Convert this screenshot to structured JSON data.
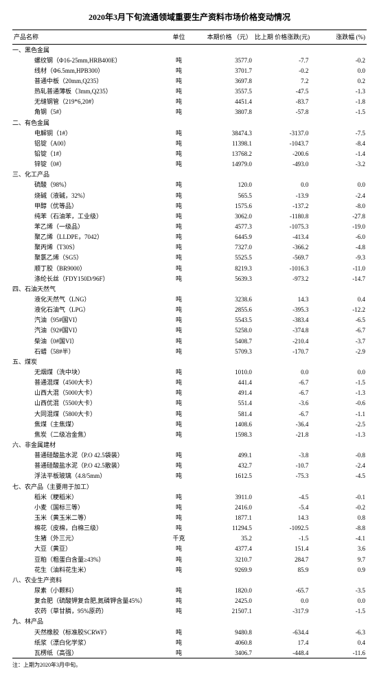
{
  "title": "2020年3月下旬流通领域重要生产资料市场价格变动情况",
  "columns": {
    "name": "产品名称",
    "unit": "单位",
    "price": "本期价格\n（元）",
    "diff": "比上期\n价格涨跌(元)",
    "pct": "涨跌幅 (%)"
  },
  "note": "注：上期为2020年3月中旬。",
  "sections": [
    {
      "cat": "一、黑色金属",
      "rows": [
        {
          "name": "螺纹钢（Φ16-25mm,HRB400E）",
          "unit": "吨",
          "price": "3577.0",
          "diff": "-7.7",
          "pct": "-0.2"
        },
        {
          "name": "线材（Φ6.5mm,HPB300）",
          "unit": "吨",
          "price": "3701.7",
          "diff": "-0.2",
          "pct": "0.0"
        },
        {
          "name": "普通中板（20mm,Q235）",
          "unit": "吨",
          "price": "3697.8",
          "diff": "7.2",
          "pct": "0.2"
        },
        {
          "name": "热轧普通薄板（3mm,Q235）",
          "unit": "吨",
          "price": "3557.5",
          "diff": "-47.5",
          "pct": "-1.3"
        },
        {
          "name": "无缝钢管（219*6,20#）",
          "unit": "吨",
          "price": "4451.4",
          "diff": "-83.7",
          "pct": "-1.8"
        },
        {
          "name": "角钢（5#）",
          "unit": "吨",
          "price": "3807.8",
          "diff": "-57.8",
          "pct": "-1.5"
        }
      ]
    },
    {
      "cat": "二、有色金属",
      "rows": [
        {
          "name": "电解铜（1#）",
          "unit": "吨",
          "price": "38474.3",
          "diff": "-3137.0",
          "pct": "-7.5"
        },
        {
          "name": "铝锭（A00）",
          "unit": "吨",
          "price": "11398.1",
          "diff": "-1043.7",
          "pct": "-8.4"
        },
        {
          "name": "铅锭（1#）",
          "unit": "吨",
          "price": "13768.2",
          "diff": "-200.6",
          "pct": "-1.4"
        },
        {
          "name": "锌锭（0#）",
          "unit": "吨",
          "price": "14979.0",
          "diff": "-493.0",
          "pct": "-3.2"
        }
      ]
    },
    {
      "cat": "三、化工产品",
      "rows": [
        {
          "name": "硫酸（98%）",
          "unit": "吨",
          "price": "120.0",
          "diff": "0.0",
          "pct": "0.0"
        },
        {
          "name": "烧碱（液碱，32%）",
          "unit": "吨",
          "price": "565.5",
          "diff": "-13.9",
          "pct": "-2.4"
        },
        {
          "name": "甲醇（优等品）",
          "unit": "吨",
          "price": "1575.6",
          "diff": "-137.2",
          "pct": "-8.0"
        },
        {
          "name": "纯苯（石油苯，工业级）",
          "unit": "吨",
          "price": "3062.0",
          "diff": "-1180.8",
          "pct": "-27.8"
        },
        {
          "name": "苯乙烯（一级品）",
          "unit": "吨",
          "price": "4577.3",
          "diff": "-1075.3",
          "pct": "-19.0"
        },
        {
          "name": "聚乙烯（LLDPE，7042）",
          "unit": "吨",
          "price": "6445.9",
          "diff": "-413.4",
          "pct": "-6.0"
        },
        {
          "name": "聚丙烯（T30S）",
          "unit": "吨",
          "price": "7327.0",
          "diff": "-366.2",
          "pct": "-4.8"
        },
        {
          "name": "聚氯乙烯（SG5）",
          "unit": "吨",
          "price": "5525.5",
          "diff": "-569.7",
          "pct": "-9.3"
        },
        {
          "name": "顺丁胶（BR9000）",
          "unit": "吨",
          "price": "8219.3",
          "diff": "-1016.3",
          "pct": "-11.0"
        },
        {
          "name": "涤纶长丝（FDY150D/96F）",
          "unit": "吨",
          "price": "5639.3",
          "diff": "-973.2",
          "pct": "-14.7"
        }
      ]
    },
    {
      "cat": "四、石油天然气",
      "rows": [
        {
          "name": "液化天然气（LNG）",
          "unit": "吨",
          "price": "3238.6",
          "diff": "14.3",
          "pct": "0.4"
        },
        {
          "name": "液化石油气（LPG）",
          "unit": "吨",
          "price": "2855.6",
          "diff": "-395.3",
          "pct": "-12.2"
        },
        {
          "name": "汽油（95#国VI）",
          "unit": "吨",
          "price": "5543.5",
          "diff": "-383.4",
          "pct": "-6.5"
        },
        {
          "name": "汽油（92#国VI）",
          "unit": "吨",
          "price": "5258.0",
          "diff": "-374.8",
          "pct": "-6.7"
        },
        {
          "name": "柴油（0#国VI）",
          "unit": "吨",
          "price": "5408.7",
          "diff": "-210.4",
          "pct": "-3.7"
        },
        {
          "name": "石蜡（58#半）",
          "unit": "吨",
          "price": "5709.3",
          "diff": "-170.7",
          "pct": "-2.9"
        }
      ]
    },
    {
      "cat": "五、煤炭",
      "rows": [
        {
          "name": "无烟煤（洗中块）",
          "unit": "吨",
          "price": "1010.0",
          "diff": "0.0",
          "pct": "0.0"
        },
        {
          "name": "普通混煤（4500大卡）",
          "unit": "吨",
          "price": "441.4",
          "diff": "-6.7",
          "pct": "-1.5"
        },
        {
          "name": "山西大混（5000大卡）",
          "unit": "吨",
          "price": "491.4",
          "diff": "-6.7",
          "pct": "-1.3"
        },
        {
          "name": "山西优混（5500大卡）",
          "unit": "吨",
          "price": "551.4",
          "diff": "-3.6",
          "pct": "-0.6"
        },
        {
          "name": "大同混煤（5800大卡）",
          "unit": "吨",
          "price": "581.4",
          "diff": "-6.7",
          "pct": "-1.1"
        },
        {
          "name": "焦煤（主焦煤）",
          "unit": "吨",
          "price": "1408.6",
          "diff": "-36.4",
          "pct": "-2.5"
        },
        {
          "name": "焦炭（二级冶金焦）",
          "unit": "吨",
          "price": "1598.3",
          "diff": "-21.8",
          "pct": "-1.3"
        }
      ]
    },
    {
      "cat": "六、非金属建材",
      "rows": [
        {
          "name": "普通硅酸盐水泥（P.O 42.5袋装）",
          "unit": "吨",
          "price": "499.1",
          "diff": "-3.8",
          "pct": "-0.8"
        },
        {
          "name": "普通硅酸盐水泥（P.O 42.5散装）",
          "unit": "吨",
          "price": "432.7",
          "diff": "-10.7",
          "pct": "-2.4"
        },
        {
          "name": "浮法平板玻璃（4.8/5mm）",
          "unit": "吨",
          "price": "1612.5",
          "diff": "-75.3",
          "pct": "-4.5"
        }
      ]
    },
    {
      "cat": "七、农产品（主要用于加工）",
      "rows": [
        {
          "name": "稻米（粳稻米）",
          "unit": "吨",
          "price": "3911.0",
          "diff": "-4.5",
          "pct": "-0.1"
        },
        {
          "name": "小麦（国标三等）",
          "unit": "吨",
          "price": "2416.0",
          "diff": "-5.4",
          "pct": "-0.2"
        },
        {
          "name": "玉米（黄玉米二等）",
          "unit": "吨",
          "price": "1877.1",
          "diff": "14.3",
          "pct": "0.8"
        },
        {
          "name": "棉花（皮棉，白棉三级）",
          "unit": "吨",
          "price": "11294.5",
          "diff": "-1092.5",
          "pct": "-8.8"
        },
        {
          "name": "生猪（外三元）",
          "unit": "千克",
          "price": "35.2",
          "diff": "-1.5",
          "pct": "-4.1"
        },
        {
          "name": "大豆（黄豆）",
          "unit": "吨",
          "price": "4377.4",
          "diff": "151.4",
          "pct": "3.6"
        },
        {
          "name": "豆粕（粗蛋白含量≥43%）",
          "unit": "吨",
          "price": "3210.7",
          "diff": "284.7",
          "pct": "9.7"
        },
        {
          "name": "花生（油料花生米）",
          "unit": "吨",
          "price": "9269.9",
          "diff": "85.9",
          "pct": "0.9"
        }
      ]
    },
    {
      "cat": "八、农业生产资料",
      "rows": [
        {
          "name": "尿素（小颗料）",
          "unit": "吨",
          "price": "1820.0",
          "diff": "-65.7",
          "pct": "-3.5"
        },
        {
          "name": "复合肥（硫酸钾复合肥,氮磷钾含量45%）",
          "unit": "吨",
          "price": "2425.0",
          "diff": "0.0",
          "pct": "0.0"
        },
        {
          "name": "农药（草甘膦，95%原药）",
          "unit": "吨",
          "price": "21507.1",
          "diff": "-317.9",
          "pct": "-1.5"
        }
      ]
    },
    {
      "cat": "九、林产品",
      "rows": [
        {
          "name": "天然橡胶（标准胶SCRWF）",
          "unit": "吨",
          "price": "9480.8",
          "diff": "-634.4",
          "pct": "-6.3"
        },
        {
          "name": "纸浆（漂白化学浆）",
          "unit": "吨",
          "price": "4060.8",
          "diff": "17.4",
          "pct": "0.4"
        },
        {
          "name": "瓦楞纸（高强）",
          "unit": "吨",
          "price": "3406.7",
          "diff": "-448.4",
          "pct": "-11.6"
        }
      ]
    }
  ]
}
